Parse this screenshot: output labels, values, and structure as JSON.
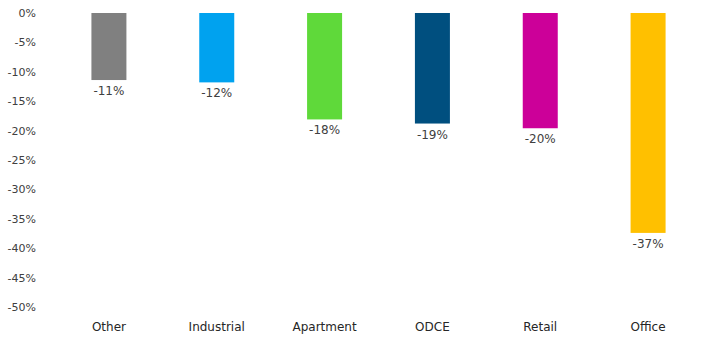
{
  "chart_data": {
    "type": "bar",
    "categories": [
      "Other",
      "Industrial",
      "Apartment",
      "ODCE",
      "Retail",
      "Office"
    ],
    "values": [
      -11.4,
      -11.8,
      -18.1,
      -18.8,
      -19.6,
      -37.4
    ],
    "value_labels": [
      "-11%",
      "-12%",
      "-18%",
      "-19%",
      "-20%",
      "-37%"
    ],
    "colors": [
      "#808080",
      "#00a2ef",
      "#5fd93a",
      "#004f7f",
      "#cc0099",
      "#ffc000"
    ],
    "data_labels": true,
    "grid": false,
    "ylim": [
      -50,
      0
    ],
    "yticks": [
      {
        "value": 0,
        "label": "0%"
      },
      {
        "value": -5,
        "label": "-5%"
      },
      {
        "value": -10,
        "label": "-10%"
      },
      {
        "value": -15,
        "label": "-15%"
      },
      {
        "value": -20,
        "label": "-20%"
      },
      {
        "value": -25,
        "label": "-25%"
      },
      {
        "value": -30,
        "label": "-30%"
      },
      {
        "value": -35,
        "label": "-35%"
      },
      {
        "value": -40,
        "label": "-40%"
      },
      {
        "value": -45,
        "label": "-45%"
      },
      {
        "value": -50,
        "label": "-50%"
      }
    ]
  }
}
